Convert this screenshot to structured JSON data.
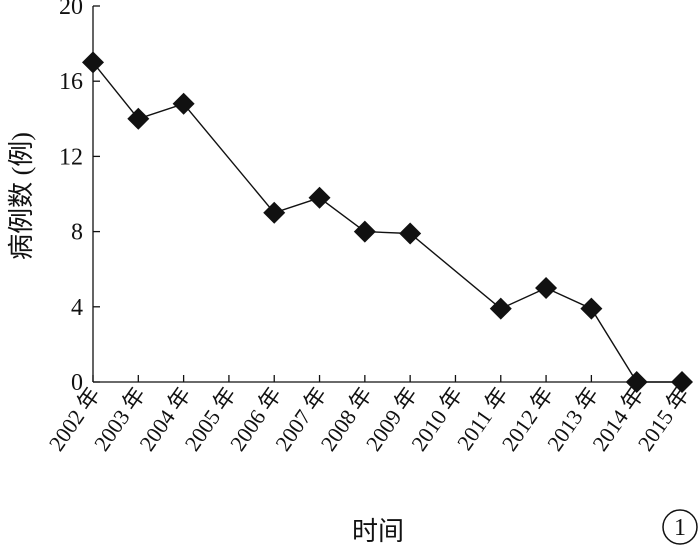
{
  "chart_data": {
    "type": "line",
    "title": "",
    "xlabel": "时间",
    "ylabel": "病例数 (例)",
    "categories": [
      "2002 年",
      "2003 年",
      "2004 年",
      "2005 年",
      "2006 年",
      "2007 年",
      "2008 年",
      "2009 年",
      "2010 年",
      "2011 年",
      "2012 年",
      "2013 年",
      "2014 年",
      "2015 年"
    ],
    "series": [
      {
        "x": [
          "2002 年",
          "2003 年",
          "2004 年",
          "2006 年",
          "2007 年",
          "2008 年",
          "2009 年",
          "2011 年",
          "2012 年",
          "2013 年",
          "2014 年",
          "2015 年"
        ],
        "values": [
          17,
          14,
          14.8,
          9,
          9.8,
          8,
          7.9,
          3.9,
          5,
          3.9,
          0,
          0
        ]
      }
    ],
    "ylim": [
      0,
      20
    ],
    "yticks": [
      0,
      4,
      8,
      12,
      16,
      20
    ],
    "marker": "diamond",
    "line_color": "#111111",
    "marker_color": "#111111",
    "grid": false,
    "legend": "none"
  },
  "badge": {
    "label": "1"
  }
}
